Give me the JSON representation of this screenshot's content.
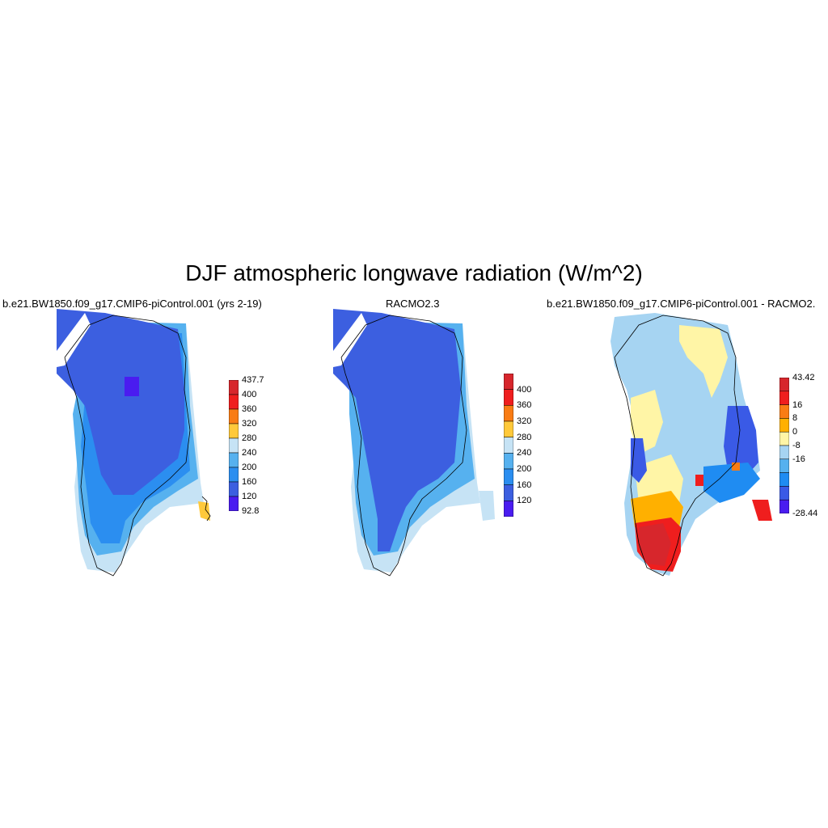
{
  "figure": {
    "title": "DJF atmospheric longwave radiation (W/m^2)"
  },
  "panels": [
    {
      "title": "b.e21.BW1850.f09_g17.CMIP6-piControl.001 (yrs 2-19)",
      "colorbar": {
        "labels": [
          "437.7",
          "400",
          "360",
          "320",
          "280",
          "240",
          "200",
          "160",
          "120",
          "92.8"
        ],
        "colors": [
          "#d7262c",
          "#ef1e1e",
          "#f97c14",
          "#ffc93a",
          "#c6e3f5",
          "#56b1ef",
          "#2b8ef0",
          "#3c5fe0",
          "#4a1cf0"
        ]
      }
    },
    {
      "title": "RACMO2.3",
      "colorbar": {
        "labels": [
          "400",
          "360",
          "320",
          "280",
          "240",
          "200",
          "160",
          "120"
        ],
        "colors": [
          "#d7262c",
          "#ef1e1e",
          "#f97c14",
          "#ffc93a",
          "#c6e3f5",
          "#56b1ef",
          "#2b8ef0",
          "#3c5fe0",
          "#4a1cf0"
        ]
      }
    },
    {
      "title": "b.e21.BW1850.f09_g17.CMIP6-piControl.001 - RACMO2.",
      "colorbar": {
        "labels": [
          "43.42",
          "16",
          "8",
          "0",
          "-8",
          "-16",
          "-28.44"
        ],
        "colors": [
          "#d7262c",
          "#ef1e1e",
          "#f97c14",
          "#ffb000",
          "#fff5a6",
          "#a6d4f2",
          "#56b1ef",
          "#1f8cf2",
          "#3a5ae6",
          "#4a1cf0"
        ]
      }
    }
  ]
}
